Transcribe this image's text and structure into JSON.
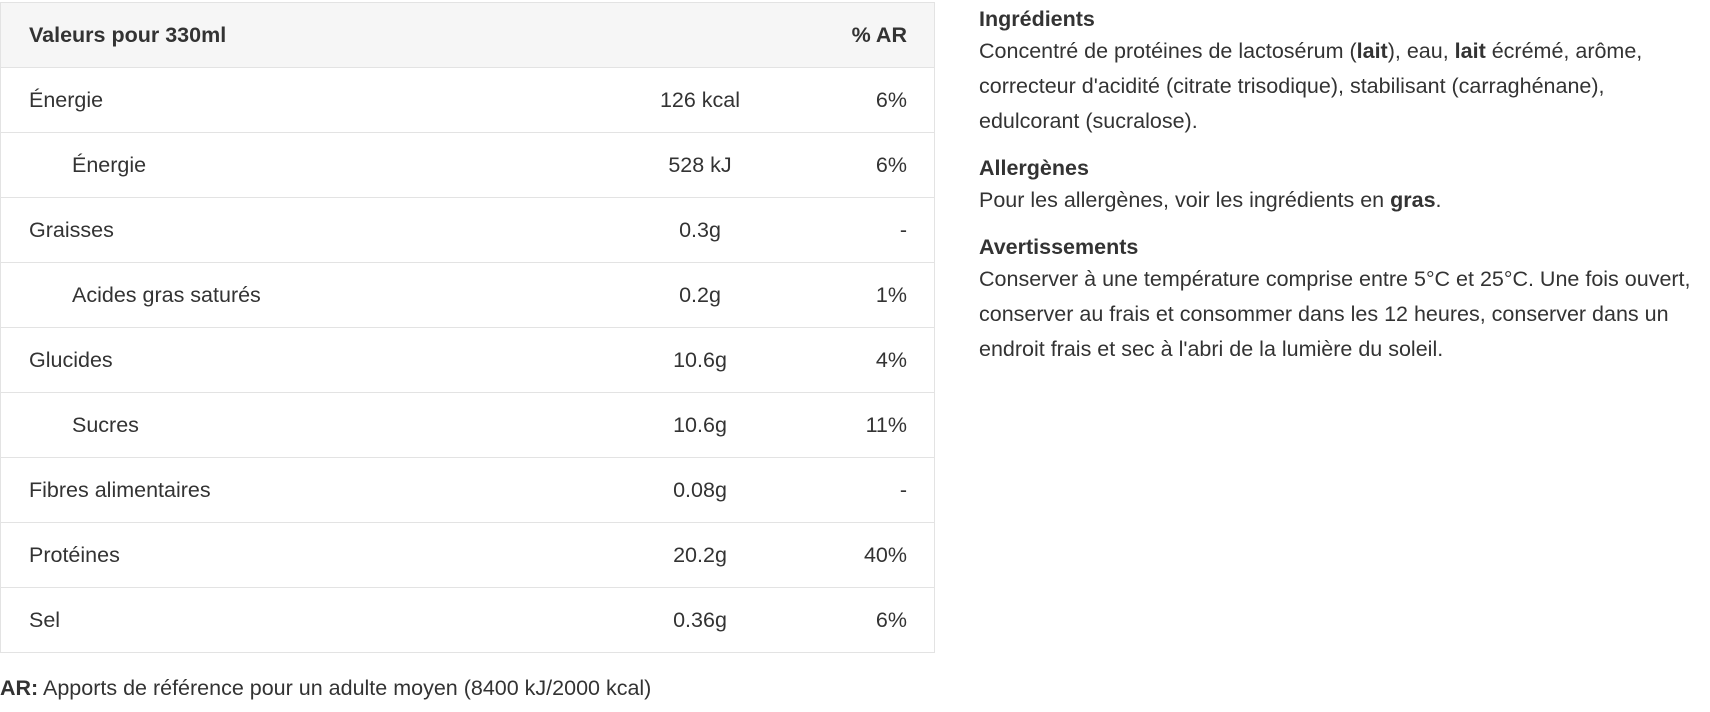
{
  "table": {
    "header": [
      "Valeurs pour 330ml",
      "% AR"
    ],
    "rows": [
      {
        "label": "Énergie",
        "amount": "126 kcal",
        "ar": "6%",
        "sub": false
      },
      {
        "label": "Énergie",
        "amount": "528 kJ",
        "ar": "6%",
        "sub": true
      },
      {
        "label": "Graisses",
        "amount": "0.3g",
        "ar": "-",
        "sub": false
      },
      {
        "label": "Acides gras saturés",
        "amount": "0.2g",
        "ar": "1%",
        "sub": true
      },
      {
        "label": "Glucides",
        "amount": "10.6g",
        "ar": "4%",
        "sub": false
      },
      {
        "label": "Sucres",
        "amount": "10.6g",
        "ar": "11%",
        "sub": true
      },
      {
        "label": "Fibres alimentaires",
        "amount": "0.08g",
        "ar": "-",
        "sub": false
      },
      {
        "label": "Protéines",
        "amount": "20.2g",
        "ar": "40%",
        "sub": false
      },
      {
        "label": "Sel",
        "amount": "0.36g",
        "ar": "6%",
        "sub": false
      }
    ]
  },
  "footnote": [
    {
      "text": "AR:",
      "bold": true
    },
    {
      "text": " Apports de référence pour un adulte moyen (8400 kJ/2000 kcal)",
      "bold": false
    }
  ],
  "sections": [
    {
      "title": "Ingrédients",
      "runs": [
        {
          "text": "Concentré de protéines de lactosérum (",
          "bold": false
        },
        {
          "text": "lait",
          "bold": true
        },
        {
          "text": "), eau, ",
          "bold": false
        },
        {
          "text": "lait",
          "bold": true
        },
        {
          "text": " écrémé, arôme, correcteur d'acidité (citrate trisodique), stabilisant (carraghénane), edulcorant (sucralose).",
          "bold": false
        }
      ]
    },
    {
      "title": "Allergènes",
      "runs": [
        {
          "text": "Pour les allergènes, voir les ingrédients en ",
          "bold": false
        },
        {
          "text": "gras",
          "bold": true
        },
        {
          "text": ".",
          "bold": false
        }
      ]
    },
    {
      "title": "Avertissements",
      "runs": [
        {
          "text": "Conserver à une température comprise entre 5°C et 25°C. Une fois ouvert, conserver au frais et consommer dans les 12 heures, conserver dans un endroit frais et sec à l'abri de la lumière du soleil.",
          "bold": false
        }
      ]
    }
  ]
}
